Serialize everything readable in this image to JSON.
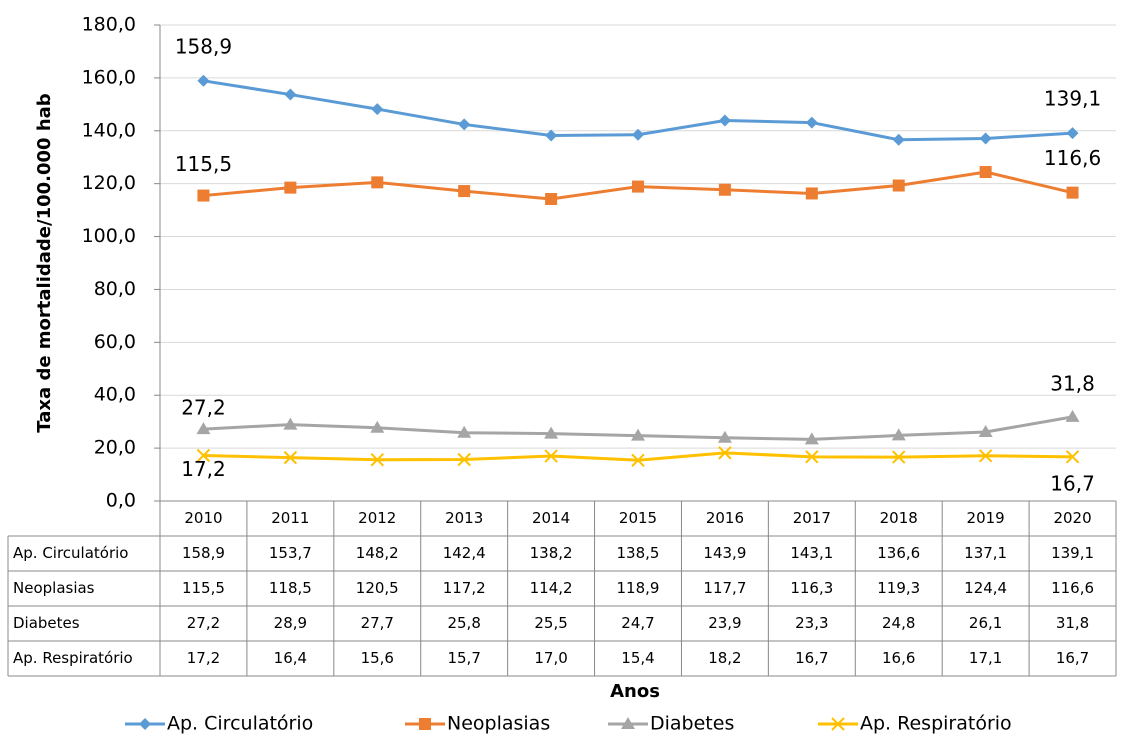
{
  "chart_data": {
    "type": "line",
    "y_label": "Taxa de mortalidade/100.000 hab",
    "x_label": "Anos",
    "categories": [
      "2010",
      "2011",
      "2012",
      "2013",
      "2014",
      "2015",
      "2016",
      "2017",
      "2018",
      "2019",
      "2020"
    ],
    "ylim": [
      0,
      180
    ],
    "yticks": [
      {
        "value": 0,
        "label": "0,0"
      },
      {
        "value": 20,
        "label": "20,0"
      },
      {
        "value": 40,
        "label": "40,0"
      },
      {
        "value": 60,
        "label": "60,0"
      },
      {
        "value": 80,
        "label": "80,0"
      },
      {
        "value": 100,
        "label": "100,0"
      },
      {
        "value": 120,
        "label": "120,0"
      },
      {
        "value": 140,
        "label": "140,0"
      },
      {
        "value": 160,
        "label": "160,0"
      },
      {
        "value": 180,
        "label": "180,0"
      }
    ],
    "grid": true,
    "legend": "bottom",
    "series": [
      {
        "name": "Ap. Circulatório",
        "color": "#5b9bd5",
        "marker": "diamond",
        "values": [
          158.9,
          153.7,
          148.2,
          142.4,
          138.2,
          138.5,
          143.9,
          143.1,
          136.6,
          137.1,
          139.1
        ],
        "value_labels": [
          "158,9",
          "153,7",
          "148,2",
          "142,4",
          "138,2",
          "138,5",
          "143,9",
          "143,1",
          "136,6",
          "137,1",
          "139,1"
        ]
      },
      {
        "name": "Neoplasias",
        "color": "#ed7d31",
        "marker": "square",
        "values": [
          115.5,
          118.5,
          120.5,
          117.2,
          114.2,
          118.9,
          117.7,
          116.3,
          119.3,
          124.4,
          116.6
        ],
        "value_labels": [
          "115,5",
          "118,5",
          "120,5",
          "117,2",
          "114,2",
          "118,9",
          "117,7",
          "116,3",
          "119,3",
          "124,4",
          "116,6"
        ]
      },
      {
        "name": "Diabetes",
        "color": "#a5a5a5",
        "marker": "triangle",
        "values": [
          27.2,
          28.9,
          27.7,
          25.8,
          25.5,
          24.7,
          23.9,
          23.3,
          24.8,
          26.1,
          31.8
        ],
        "value_labels": [
          "27,2",
          "28,9",
          "27,7",
          "25,8",
          "25,5",
          "24,7",
          "23,9",
          "23,3",
          "24,8",
          "26,1",
          "31,8"
        ]
      },
      {
        "name": "Ap. Respiratório",
        "color": "#ffc000",
        "marker": "x",
        "values": [
          17.2,
          16.4,
          15.6,
          15.7,
          17.0,
          15.4,
          18.2,
          16.7,
          16.6,
          17.1,
          16.7
        ],
        "value_labels": [
          "17,2",
          "16,4",
          "15,6",
          "15,7",
          "17,0",
          "15,4",
          "18,2",
          "16,7",
          "16,6",
          "17,1",
          "16,7"
        ]
      }
    ]
  }
}
